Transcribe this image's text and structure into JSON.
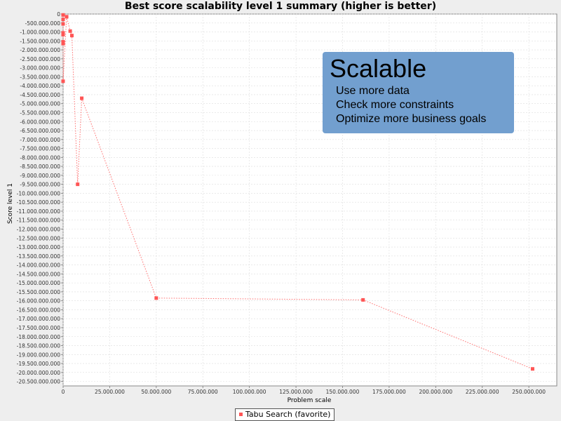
{
  "chart_data": {
    "type": "scatter",
    "title": "Best score scalability level 1 summary (higher is better)",
    "xlabel": "Problem scale",
    "ylabel": "Score level 1",
    "xlim": [
      0,
      265000000
    ],
    "ylim": [
      -20750000000,
      0
    ],
    "grid": true,
    "legend_position": "bottom-center",
    "x_ticks": [
      0,
      25000000,
      50000000,
      75000000,
      100000000,
      125000000,
      150000000,
      175000000,
      200000000,
      225000000,
      250000000
    ],
    "x_tick_labels": [
      "0",
      "25.000.000",
      "50.000.000",
      "75.000.000",
      "100.000.000",
      "125.000.000",
      "150.000.000",
      "175.000.000",
      "200.000.000",
      "225.000.000",
      "250.000.000"
    ],
    "y_tick_step": 500000000,
    "y_tick_labels": [
      "0",
      "-500.000.000",
      "-1.000.000.000",
      "-1.500.000.000",
      "-2.000.000.000",
      "-2.500.000.000",
      "-3.000.000.000",
      "-3.500.000.000",
      "-4.000.000.000",
      "-4.500.000.000",
      "-5.000.000.000",
      "-5.500.000.000",
      "-6.000.000.000",
      "-6.500.000.000",
      "-7.000.000.000",
      "-7.500.000.000",
      "-8.000.000.000",
      "-8.500.000.000",
      "-9.000.000.000",
      "-9.500.000.000",
      "-10.000.000.000",
      "-10.500.000.000",
      "-11.000.000.000",
      "-11.500.000.000",
      "-12.000.000.000",
      "-12.500.000.000",
      "-13.000.000.000",
      "-13.500.000.000",
      "-14.000.000.000",
      "-14.500.000.000",
      "-15.000.000.000",
      "-15.500.000.000",
      "-16.000.000.000",
      "-16.500.000.000",
      "-17.000.000.000",
      "-17.500.000.000",
      "-18.000.000.000",
      "-18.500.000.000",
      "-19.000.000.000",
      "-19.500.000.000",
      "-20.000.000.000",
      "-20.500.000.000"
    ],
    "series": [
      {
        "name": "Tabu Search (favorite)",
        "color": "#ff5555",
        "line_style": "dotted",
        "points": [
          {
            "x": 0,
            "y": -50000000
          },
          {
            "x": 0,
            "y": -300000000
          },
          {
            "x": 0,
            "y": -550000000
          },
          {
            "x": 0,
            "y": -1050000000
          },
          {
            "x": 0,
            "y": -1150000000
          },
          {
            "x": 0,
            "y": -1550000000
          },
          {
            "x": 0,
            "y": -1650000000
          },
          {
            "x": 0,
            "y": -3750000000
          },
          {
            "x": 1900000,
            "y": -150000000
          },
          {
            "x": 3800000,
            "y": -950000000
          },
          {
            "x": 4700000,
            "y": -1200000000
          },
          {
            "x": 7800000,
            "y": -9500000000
          },
          {
            "x": 10000000,
            "y": -4700000000
          },
          {
            "x": 50000000,
            "y": -15850000000
          },
          {
            "x": 161000000,
            "y": -15950000000
          },
          {
            "x": 252000000,
            "y": -19800000000
          }
        ]
      }
    ]
  },
  "callout": {
    "title": "Scalable",
    "lines": [
      "Use more data",
      "Check more constraints",
      "Optimize more business goals"
    ],
    "color": "#729fcf"
  },
  "legend": {
    "label": "Tabu Search (favorite)"
  }
}
